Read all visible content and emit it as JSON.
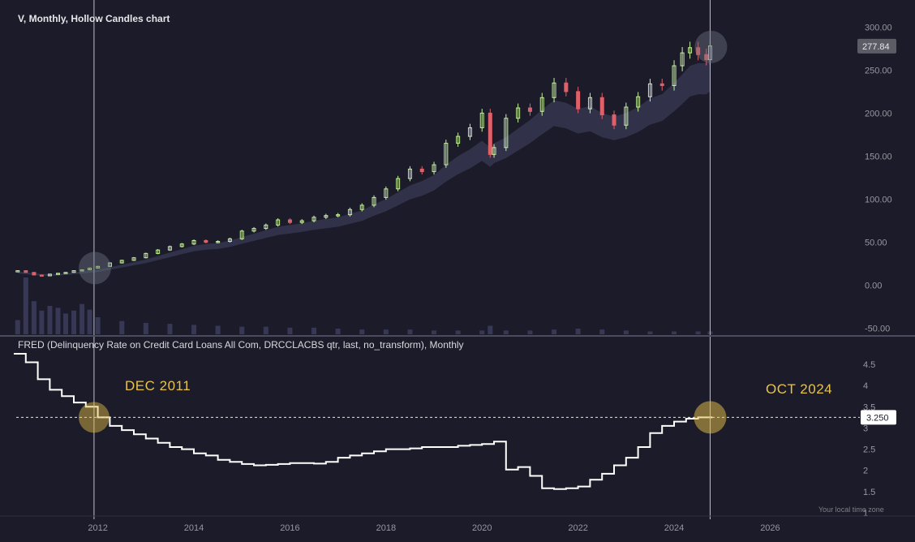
{
  "header": {
    "title": "V, Monthly, Hollow Candles chart"
  },
  "lower_pane": {
    "title": "FRED (Delinquency Rate on Credit Card Loans All Com, DRCCLACBS qtr, last, no_transform), Monthly"
  },
  "annotations": {
    "left": "DEC 2011",
    "right": "OCT 2024"
  },
  "footer": {
    "timezone": "Your local time zone"
  },
  "colors": {
    "background": "#1c1b29",
    "up": "#c8f0a0",
    "down": "#e0606a",
    "line": "#ffffff",
    "highlight": "#e8c34a",
    "ma_band": "#3a3c58"
  },
  "chart_data": [
    {
      "type": "candlestick",
      "title": "V, Monthly, Hollow Candles chart",
      "last_price_label": "277.84",
      "ylim": [
        -55,
        305
      ],
      "y_ticks": [
        "300.00",
        "250.00",
        "200.00",
        "150.00",
        "100.00",
        "50.00",
        "0.00",
        "-50.00"
      ],
      "y_tick_values": [
        300,
        250,
        200,
        150,
        100,
        50,
        0,
        -50
      ],
      "x_ticks": [
        "2012",
        "2014",
        "2016",
        "2018",
        "2020",
        "2022",
        "2024",
        "2026"
      ],
      "x_tick_values": [
        2012,
        2014,
        2016,
        2018,
        2020,
        2022,
        2024,
        2026
      ],
      "xlim": [
        2010.3,
        2027.8
      ],
      "markers": [
        2011.92,
        2024.75
      ],
      "series": [
        {
          "x": [
            2010.33,
            2010.5,
            2010.67,
            2010.83,
            2011.0,
            2011.17,
            2011.33,
            2011.5,
            2011.67,
            2011.83,
            2012.0,
            2012.25,
            2012.5,
            2012.75,
            2013.0,
            2013.25,
            2013.5,
            2013.75,
            2014.0,
            2014.25,
            2014.5,
            2014.75,
            2015.0,
            2015.25,
            2015.5,
            2015.75,
            2016.0,
            2016.25,
            2016.5,
            2016.75,
            2017.0,
            2017.25,
            2017.5,
            2017.75,
            2018.0,
            2018.25,
            2018.5,
            2018.75,
            2019.0,
            2019.25,
            2019.5,
            2019.75,
            2020.0,
            2020.17,
            2020.25,
            2020.5,
            2020.75,
            2021.0,
            2021.25,
            2021.5,
            2021.75,
            2022.0,
            2022.25,
            2022.5,
            2022.75,
            2023.0,
            2023.25,
            2023.5,
            2023.75,
            2024.0,
            2024.17,
            2024.33,
            2024.5,
            2024.67,
            2024.75
          ],
          "close": [
            17,
            15,
            12,
            11,
            13,
            14,
            15,
            17,
            18,
            20,
            22,
            26,
            29,
            32,
            37,
            41,
            45,
            48,
            52,
            50,
            51,
            54,
            63,
            66,
            70,
            76,
            73,
            75,
            79,
            81,
            82,
            88,
            93,
            102,
            112,
            124,
            135,
            132,
            140,
            165,
            173,
            183,
            200,
            152,
            160,
            194,
            206,
            202,
            218,
            235,
            225,
            205,
            218,
            198,
            186,
            207,
            219,
            234,
            232,
            255,
            270,
            276,
            268,
            262,
            278
          ],
          "ma": [
            16,
            15,
            14,
            13,
            13,
            13,
            14,
            15,
            16,
            17,
            18,
            21,
            24,
            27,
            30,
            34,
            38,
            42,
            46,
            48,
            49,
            52,
            56,
            60,
            64,
            68,
            70,
            72,
            75,
            77,
            79,
            83,
            87,
            94,
            100,
            108,
            116,
            121,
            128,
            140,
            150,
            158,
            168,
            160,
            165,
            172,
            182,
            192,
            204,
            215,
            212,
            205,
            208,
            200,
            196,
            200,
            207,
            217,
            222,
            235,
            245,
            255,
            258,
            258,
            262
          ]
        }
      ],
      "volume": {
        "x": [
          2010.33,
          2010.5,
          2010.67,
          2010.83,
          2011.0,
          2011.17,
          2011.33,
          2011.5,
          2011.67,
          2011.83,
          2012.0,
          2012.5,
          2013.0,
          2013.5,
          2014.0,
          2014.5,
          2015.0,
          2015.5,
          2016.0,
          2016.5,
          2017.0,
          2017.5,
          2018.0,
          2018.5,
          2019.0,
          2019.5,
          2020.0,
          2020.17,
          2020.5,
          2021.0,
          2021.5,
          2022.0,
          2022.5,
          2023.0,
          2023.5,
          2024.0,
          2024.5,
          2024.75
        ],
        "values": [
          15,
          60,
          35,
          25,
          30,
          28,
          22,
          25,
          32,
          26,
          18,
          14,
          12,
          11,
          10,
          9,
          8,
          8,
          7,
          7,
          6,
          5,
          5,
          5,
          4,
          4,
          4,
          9,
          4,
          4,
          5,
          6,
          5,
          4,
          3,
          3,
          3,
          3
        ]
      }
    },
    {
      "type": "line",
      "title": "FRED (Delinquency Rate on Credit Card Loans All Com, DRCCLACBS qtr, last, no_transform), Monthly",
      "last_value_label": "3.250",
      "reference_value": 3.25,
      "ylim": [
        1.0,
        4.75
      ],
      "y_ticks": [
        "4.5",
        "4",
        "3.5",
        "3",
        "2.5",
        "2",
        "1.5",
        "1"
      ],
      "y_tick_values": [
        4.5,
        4,
        3.5,
        3,
        2.5,
        2,
        1.5,
        1
      ],
      "series": [
        {
          "x": [
            2010.25,
            2010.5,
            2010.75,
            2011.0,
            2011.25,
            2011.5,
            2011.75,
            2012.0,
            2012.25,
            2012.5,
            2012.75,
            2013.0,
            2013.25,
            2013.5,
            2013.75,
            2014.0,
            2014.25,
            2014.5,
            2014.75,
            2015.0,
            2015.25,
            2015.5,
            2015.75,
            2016.0,
            2016.25,
            2016.5,
            2016.75,
            2017.0,
            2017.25,
            2017.5,
            2017.75,
            2018.0,
            2018.25,
            2018.5,
            2018.75,
            2019.0,
            2019.25,
            2019.5,
            2019.75,
            2020.0,
            2020.25,
            2020.5,
            2020.75,
            2021.0,
            2021.25,
            2021.5,
            2021.75,
            2022.0,
            2022.25,
            2022.5,
            2022.75,
            2023.0,
            2023.25,
            2023.5,
            2023.75,
            2024.0,
            2024.25,
            2024.5,
            2024.75
          ],
          "values": [
            4.75,
            4.55,
            4.15,
            3.9,
            3.75,
            3.6,
            3.5,
            3.25,
            3.05,
            2.95,
            2.85,
            2.75,
            2.65,
            2.55,
            2.5,
            2.4,
            2.35,
            2.25,
            2.2,
            2.15,
            2.12,
            2.13,
            2.15,
            2.17,
            2.17,
            2.16,
            2.2,
            2.3,
            2.35,
            2.4,
            2.45,
            2.5,
            2.5,
            2.52,
            2.55,
            2.55,
            2.55,
            2.58,
            2.6,
            2.62,
            2.68,
            2.02,
            2.08,
            1.87,
            1.58,
            1.56,
            1.58,
            1.62,
            1.78,
            1.92,
            2.12,
            2.3,
            2.55,
            2.88,
            3.05,
            3.15,
            3.22,
            3.25,
            3.25
          ]
        }
      ]
    }
  ]
}
